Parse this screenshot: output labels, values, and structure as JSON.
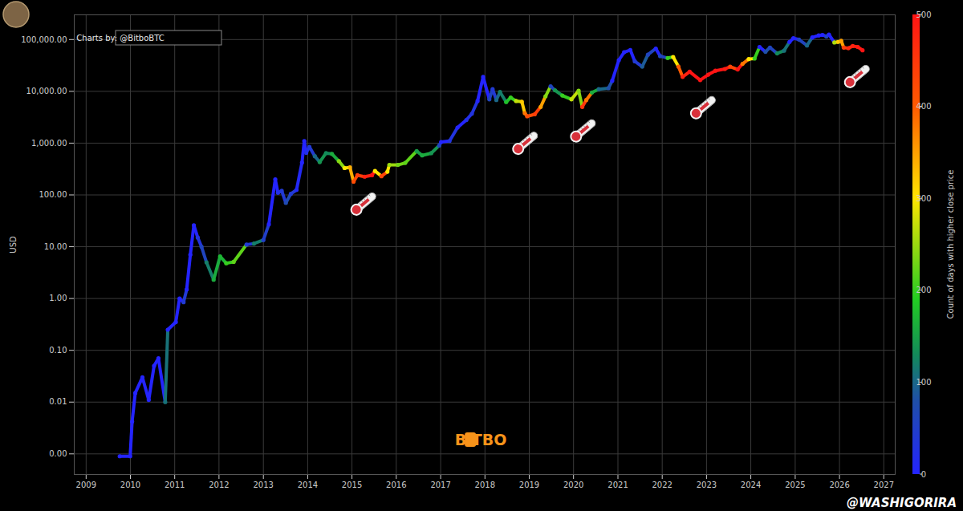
{
  "chart_data": {
    "type": "scatter",
    "source_label": "Charts by: @BitboBTC",
    "watermark": "BiTBO",
    "credit": "@WASHIGORIRA",
    "ylabel": "USD",
    "log": "y",
    "grid": true,
    "x": [
      "2009-10-05",
      "2009-12-30",
      "2010-01-15",
      "2010-02-10",
      "2010-04-10",
      "2010-06-01",
      "2010-07-15",
      "2010-08-20",
      "2010-10-15",
      "2010-11-05",
      "2011-01-10",
      "2011-02-10",
      "2011-03-15",
      "2011-04-10",
      "2011-05-10",
      "2011-06-08",
      "2011-07-10",
      "2011-08-10",
      "2011-09-20",
      "2011-11-18",
      "2012-01-10",
      "2012-03-01",
      "2012-05-01",
      "2012-08-15",
      "2012-10-15",
      "2013-01-01",
      "2013-02-15",
      "2013-04-09",
      "2013-05-01",
      "2013-06-01",
      "2013-07-05",
      "2013-08-15",
      "2013-10-01",
      "2013-11-15",
      "2013-12-04",
      "2013-12-20",
      "2014-01-15",
      "2014-03-01",
      "2014-04-10",
      "2014-06-01",
      "2014-07-20",
      "2014-09-15",
      "2014-11-01",
      "2014-12-15",
      "2015-01-14",
      "2015-02-15",
      "2015-04-15",
      "2015-06-15",
      "2015-07-10",
      "2015-09-01",
      "2015-10-20",
      "2015-11-05",
      "2016-01-15",
      "2016-03-15",
      "2016-06-17",
      "2016-08-01",
      "2016-10-15",
      "2016-12-20",
      "2017-01-05",
      "2017-03-15",
      "2017-05-20",
      "2017-08-01",
      "2017-09-15",
      "2017-11-01",
      "2017-12-17",
      "2018-02-06",
      "2018-03-05",
      "2018-04-05",
      "2018-05-05",
      "2018-06-25",
      "2018-08-01",
      "2018-09-15",
      "2018-11-01",
      "2018-11-25",
      "2018-12-15",
      "2019-02-15",
      "2019-04-05",
      "2019-05-15",
      "2019-06-26",
      "2019-08-01",
      "2019-10-01",
      "2019-12-15",
      "2020-02-12",
      "2020-03-13",
      "2020-04-15",
      "2020-06-01",
      "2020-07-27",
      "2020-10-15",
      "2020-11-15",
      "2021-01-08",
      "2021-02-21",
      "2021-04-13",
      "2021-05-20",
      "2021-07-20",
      "2021-09-05",
      "2021-11-09",
      "2021-12-15",
      "2022-02-15",
      "2022-04-01",
      "2022-05-15",
      "2022-06-18",
      "2022-08-15",
      "2022-11-10",
      "2023-01-15",
      "2023-03-15",
      "2023-06-01",
      "2023-07-15",
      "2023-09-15",
      "2023-10-25",
      "2023-12-15",
      "2024-02-01",
      "2024-03-13",
      "2024-05-01",
      "2024-06-07",
      "2024-08-05",
      "2024-10-01",
      "2024-11-15",
      "2024-12-17",
      "2025-02-01",
      "2025-04-08",
      "2025-05-22",
      "2025-07-14",
      "2025-08-14",
      "2025-09-15",
      "2025-10-06",
      "2025-11-20",
      "2025-12-20",
      "2026-01-15",
      "2026-02-05",
      "2026-03-15",
      "2026-04-20",
      "2026-06-01",
      "2026-07-10"
    ],
    "values": [
      0.0009,
      0.0009,
      0.0042,
      0.015,
      0.03,
      0.011,
      0.05,
      0.07,
      0.01,
      0.25,
      0.35,
      1,
      0.85,
      1.5,
      7,
      26,
      15,
      10,
      5,
      2.3,
      6.5,
      4.8,
      5.1,
      11,
      11.5,
      13.5,
      27,
      200,
      110,
      120,
      70,
      105,
      125,
      420,
      1100,
      650,
      850,
      560,
      430,
      640,
      620,
      450,
      330,
      340,
      180,
      240,
      225,
      240,
      290,
      230,
      280,
      380,
      380,
      415,
      700,
      580,
      640,
      900,
      1050,
      1100,
      2000,
      2800,
      3700,
      6500,
      19000,
      7000,
      11000,
      6800,
      9700,
      6200,
      7600,
      6500,
      6300,
      3800,
      3300,
      3600,
      5000,
      8000,
      12500,
      10500,
      8300,
      7000,
      10300,
      5000,
      6800,
      9500,
      11000,
      11500,
      16000,
      40000,
      57000,
      63000,
      38000,
      30000,
      51000,
      67000,
      48000,
      44000,
      46000,
      30000,
      19000,
      24000,
      16500,
      21000,
      25000,
      27000,
      30000,
      26500,
      34000,
      42000,
      43000,
      72000,
      58000,
      70000,
      54000,
      61000,
      90000,
      106000,
      100000,
      77000,
      110000,
      120000,
      123000,
      115000,
      125000,
      88000,
      90000,
      95000,
      70000,
      68000,
      75000,
      72000,
      62000
    ],
    "days_with_higher_close": [
      0,
      0,
      0,
      0,
      0,
      0,
      0,
      0,
      110,
      0,
      0,
      0,
      40,
      0,
      0,
      0,
      30,
      60,
      120,
      160,
      170,
      200,
      220,
      40,
      120,
      50,
      0,
      0,
      20,
      40,
      70,
      40,
      10,
      0,
      0,
      20,
      40,
      100,
      140,
      130,
      160,
      240,
      300,
      340,
      420,
      440,
      480,
      500,
      300,
      430,
      300,
      250,
      230,
      220,
      150,
      160,
      140,
      60,
      0,
      30,
      0,
      20,
      30,
      0,
      0,
      60,
      40,
      100,
      120,
      180,
      200,
      270,
      320,
      380,
      420,
      440,
      350,
      240,
      60,
      140,
      200,
      270,
      240,
      450,
      380,
      160,
      100,
      80,
      0,
      0,
      0,
      0,
      40,
      90,
      60,
      0,
      60,
      200,
      300,
      400,
      480,
      500,
      500,
      500,
      500,
      490,
      430,
      500,
      380,
      300,
      200,
      0,
      80,
      60,
      130,
      110,
      0,
      0,
      60,
      100,
      0,
      0,
      0,
      60,
      0,
      260,
      320,
      350,
      440,
      470,
      480,
      490,
      500
    ],
    "xlim": [
      "2008-09-25",
      "2027-04-05"
    ],
    "xticks": [
      {
        "value": "2009-01-01",
        "label": "2009"
      },
      {
        "value": "2010-01-01",
        "label": "2010"
      },
      {
        "value": "2011-01-01",
        "label": "2011"
      },
      {
        "value": "2012-01-01",
        "label": "2012"
      },
      {
        "value": "2013-01-01",
        "label": "2013"
      },
      {
        "value": "2014-01-01",
        "label": "2014"
      },
      {
        "value": "2015-01-01",
        "label": "2015"
      },
      {
        "value": "2016-01-01",
        "label": "2016"
      },
      {
        "value": "2017-01-01",
        "label": "2017"
      },
      {
        "value": "2018-01-01",
        "label": "2018"
      },
      {
        "value": "2019-01-01",
        "label": "2019"
      },
      {
        "value": "2020-01-01",
        "label": "2020"
      },
      {
        "value": "2021-01-01",
        "label": "2021"
      },
      {
        "value": "2022-01-01",
        "label": "2022"
      },
      {
        "value": "2023-01-01",
        "label": "2023"
      },
      {
        "value": "2024-01-01",
        "label": "2024"
      },
      {
        "value": "2025-01-01",
        "label": "2025"
      },
      {
        "value": "2026-01-01",
        "label": "2026"
      },
      {
        "value": "2027-01-01",
        "label": "2027"
      }
    ],
    "ylim": [
      0.0004,
      300000
    ],
    "yticks": [
      {
        "value": 0.001,
        "label": "0.00"
      },
      {
        "value": 0.01,
        "label": "0.01"
      },
      {
        "value": 0.1,
        "label": "0.10"
      },
      {
        "value": 1,
        "label": "1.00"
      },
      {
        "value": 10,
        "label": "10.00"
      },
      {
        "value": 100,
        "label": "100.00"
      },
      {
        "value": 1000,
        "label": "1,000.00"
      },
      {
        "value": 10000,
        "label": "10,000.00"
      },
      {
        "value": 100000,
        "label": "100,000.00"
      }
    ],
    "colorbar": {
      "label": "Count of days with higher close price",
      "range": [
        0,
        500
      ],
      "ticks": [
        0,
        100,
        200,
        300,
        400,
        500
      ]
    },
    "annotations": [
      {
        "x": "2015-02-10",
        "y": 51,
        "marker": "thermometer"
      },
      {
        "x": "2018-10-05",
        "y": 760,
        "marker": "thermometer"
      },
      {
        "x": "2020-01-25",
        "y": 1320,
        "marker": "thermometer"
      },
      {
        "x": "2022-10-10",
        "y": 3700,
        "marker": "thermometer"
      },
      {
        "x": "2026-04-01",
        "y": 14800,
        "marker": "thermometer"
      }
    ]
  }
}
